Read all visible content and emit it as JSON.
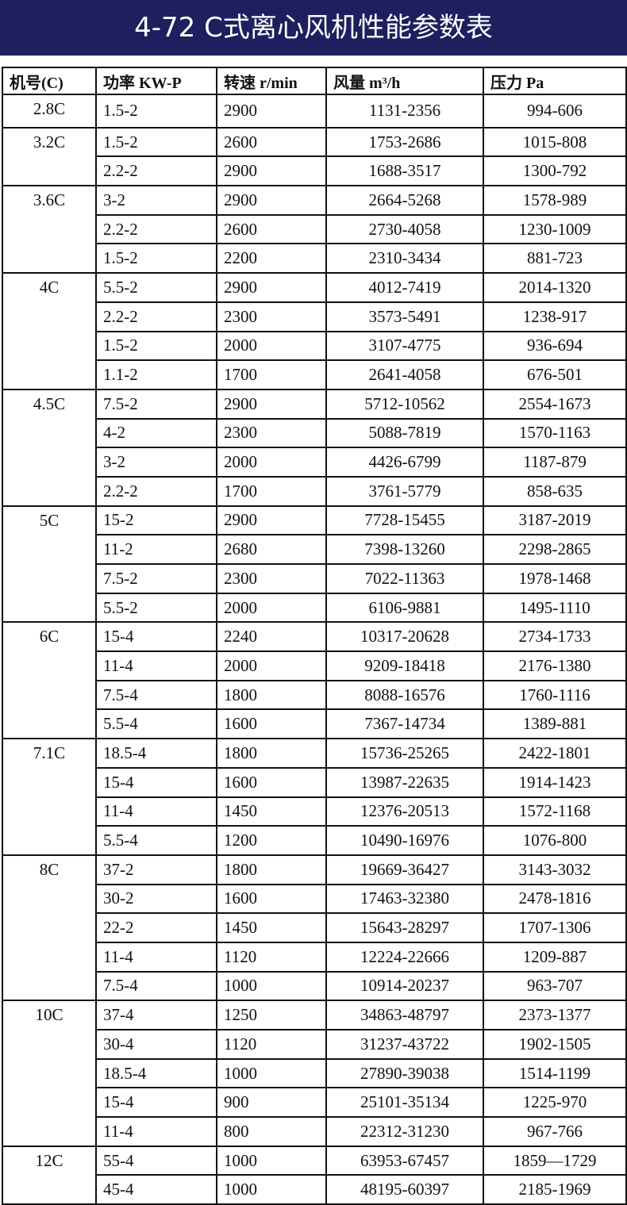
{
  "header": {
    "title": "4-72 C式离心风机性能参数表"
  },
  "table": {
    "headers": [
      "机号(C)",
      "功率 KW-P",
      "转速 r/min",
      "风量 m³/h",
      "压力 Pa"
    ],
    "groups": [
      {
        "model": "2.8C",
        "rows": [
          [
            "1.5-2",
            "2900",
            "1131-2356",
            "994-606"
          ]
        ]
      },
      {
        "model": "3.2C",
        "rows": [
          [
            "1.5-2",
            "2600",
            "1753-2686",
            "1015-808"
          ],
          [
            "2.2-2",
            "2900",
            "1688-3517",
            "1300-792"
          ]
        ]
      },
      {
        "model": "3.6C",
        "rows": [
          [
            "3-2",
            "2900",
            "2664-5268",
            "1578-989"
          ],
          [
            "2.2-2",
            "2600",
            "2730-4058",
            "1230-1009"
          ],
          [
            "1.5-2",
            "2200",
            "2310-3434",
            "881-723"
          ]
        ]
      },
      {
        "model": "4C",
        "rows": [
          [
            "5.5-2",
            "2900",
            "4012-7419",
            "2014-1320"
          ],
          [
            "2.2-2",
            "2300",
            "3573-5491",
            "1238-917"
          ],
          [
            "1.5-2",
            "2000",
            "3107-4775",
            "936-694"
          ],
          [
            "1.1-2",
            "1700",
            "2641-4058",
            "676-501"
          ]
        ]
      },
      {
        "model": "4.5C",
        "rows": [
          [
            "7.5-2",
            "2900",
            "5712-10562",
            "2554-1673"
          ],
          [
            "4-2",
            "2300",
            "5088-7819",
            "1570-1163"
          ],
          [
            "3-2",
            "2000",
            "4426-6799",
            "1187-879"
          ],
          [
            "2.2-2",
            "1700",
            "3761-5779",
            "858-635"
          ]
        ]
      },
      {
        "model": "5C",
        "rows": [
          [
            "15-2",
            "2900",
            "7728-15455",
            "3187-2019"
          ],
          [
            "11-2",
            "2680",
            "7398-13260",
            "2298-2865"
          ],
          [
            "7.5-2",
            "2300",
            "7022-11363",
            "1978-1468"
          ],
          [
            "5.5-2",
            "2000",
            "6106-9881",
            "1495-1110"
          ]
        ]
      },
      {
        "model": "6C",
        "rows": [
          [
            "15-4",
            "2240",
            "10317-20628",
            "2734-1733"
          ],
          [
            "11-4",
            "2000",
            "9209-18418",
            "2176-1380"
          ],
          [
            "7.5-4",
            "1800",
            "8088-16576",
            "1760-1116"
          ],
          [
            "5.5-4",
            "1600",
            "7367-14734",
            "1389-881"
          ]
        ]
      },
      {
        "model": "7.1C",
        "rows": [
          [
            "18.5-4",
            "1800",
            "15736-25265",
            "2422-1801"
          ],
          [
            "15-4",
            "1600",
            "13987-22635",
            "1914-1423"
          ],
          [
            "11-4",
            "1450",
            "12376-20513",
            "1572-1168"
          ],
          [
            "5.5-4",
            "1200",
            "10490-16976",
            "1076-800"
          ]
        ]
      },
      {
        "model": "8C",
        "rows": [
          [
            "37-2",
            "1800",
            "19669-36427",
            "3143-3032"
          ],
          [
            "30-2",
            "1600",
            "17463-32380",
            "2478-1816"
          ],
          [
            "22-2",
            "1450",
            "15643-28297",
            "1707-1306"
          ],
          [
            "11-4",
            "1120",
            "12224-22666",
            "1209-887"
          ],
          [
            "7.5-4",
            "1000",
            "10914-20237",
            "963-707"
          ]
        ]
      },
      {
        "model": "10C",
        "rows": [
          [
            "37-4",
            "1250",
            "34863-48797",
            "2373-1377"
          ],
          [
            "30-4",
            "1120",
            "31237-43722",
            "1902-1505"
          ],
          [
            "18.5-4",
            "1000",
            "27890-39038",
            "1514-1199"
          ],
          [
            "15-4",
            "900",
            "25101-35134",
            "1225-970"
          ],
          [
            "11-4",
            "800",
            "22312-31230",
            "967-766"
          ]
        ]
      },
      {
        "model": "12C",
        "rows": [
          [
            "55-4",
            "1000",
            "63953-67457",
            "1859—1729"
          ],
          [
            "45-4",
            "1000",
            "48195-60397",
            "2185-1969"
          ]
        ]
      }
    ]
  }
}
